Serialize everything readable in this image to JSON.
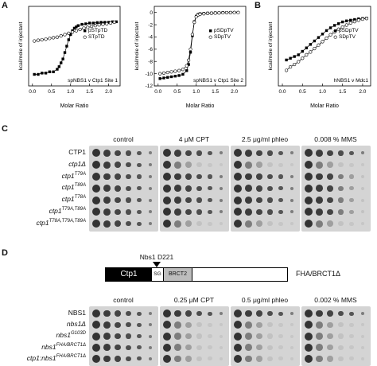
{
  "panel_labels": {
    "a": "A",
    "b": "B",
    "c": "C",
    "d": "D"
  },
  "chart_data": [
    {
      "type": "scatter",
      "panel": "A",
      "ylabel": "kcal/mole of injectant",
      "xlabel": "Molar Ratio",
      "annotation": "spNBS1 v Ctp1 Site 1",
      "xlim": [
        -0.1,
        2.3
      ],
      "ylim": [
        -2.5,
        0.6
      ],
      "xticks": [
        "0.0",
        "0.5",
        "1.0",
        "1.5",
        "2.0"
      ],
      "yticks": [],
      "legend_position": "center-right",
      "series": [
        {
          "name": "pSTpTD",
          "marker": "filled-square",
          "x": [
            0.05,
            0.15,
            0.25,
            0.35,
            0.45,
            0.55,
            0.65,
            0.7,
            0.75,
            0.8,
            0.85,
            0.9,
            0.95,
            1.0,
            1.05,
            1.1,
            1.15,
            1.2,
            1.3,
            1.4,
            1.5,
            1.6,
            1.7,
            1.8,
            1.9,
            2.0,
            2.1,
            2.2
          ],
          "y": [
            -2.05,
            -2.05,
            -2.0,
            -2.0,
            -1.95,
            -1.95,
            -1.85,
            -1.75,
            -1.6,
            -1.45,
            -1.2,
            -0.95,
            -0.7,
            -0.5,
            -0.35,
            -0.25,
            -0.2,
            -0.15,
            -0.1,
            -0.08,
            -0.05,
            -0.05,
            -0.03,
            -0.02,
            -0.02,
            -0.02,
            0.0,
            0.0
          ]
        },
        {
          "name": "STpTD",
          "marker": "open-circle",
          "x": [
            0.05,
            0.15,
            0.25,
            0.35,
            0.45,
            0.55,
            0.65,
            0.75,
            0.85,
            0.95,
            1.05,
            1.15,
            1.25,
            1.35,
            1.45,
            1.55,
            1.65,
            1.75,
            1.85,
            1.95,
            2.05,
            2.15
          ],
          "y": [
            -0.75,
            -0.72,
            -0.7,
            -0.68,
            -0.65,
            -0.62,
            -0.6,
            -0.55,
            -0.5,
            -0.45,
            -0.4,
            -0.35,
            -0.3,
            -0.25,
            -0.22,
            -0.18,
            -0.15,
            -0.12,
            -0.1,
            -0.08,
            -0.05,
            -0.02
          ]
        }
      ]
    },
    {
      "type": "scatter",
      "panel": "A",
      "ylabel": "kcal/mole of injectant",
      "xlabel": "Molar Ratio",
      "annotation": "spNBS1 v Ctp1 Site 2",
      "xlim": [
        -0.1,
        2.3
      ],
      "ylim": [
        -12,
        1
      ],
      "xticks": [
        "0.0",
        "0.5",
        "1.0",
        "1.5",
        "2.0"
      ],
      "yticks": [
        "0",
        "-2",
        "-4",
        "-6",
        "-8",
        "-10",
        "-12"
      ],
      "legend_position": "center-right",
      "series": [
        {
          "name": "pSDpTV",
          "marker": "filled-square",
          "x": [
            0.05,
            0.15,
            0.25,
            0.35,
            0.45,
            0.55,
            0.65,
            0.75,
            0.8,
            0.85,
            0.9,
            0.95,
            1.0,
            1.05,
            1.1,
            1.2,
            1.3,
            1.4,
            1.5,
            1.6,
            1.7,
            1.8,
            1.9,
            2.0,
            2.1
          ],
          "y": [
            -10.8,
            -10.7,
            -10.6,
            -10.5,
            -10.4,
            -10.3,
            -10.1,
            -9.5,
            -8.5,
            -6.5,
            -3.8,
            -1.5,
            -0.6,
            -0.3,
            -0.2,
            -0.15,
            -0.1,
            -0.1,
            -0.05,
            -0.05,
            0.0,
            0.0,
            0.0,
            0.0,
            0.0
          ]
        },
        {
          "name": "SDpTV",
          "marker": "open-circle",
          "x": [
            0.05,
            0.15,
            0.25,
            0.35,
            0.45,
            0.55,
            0.65,
            0.75,
            0.8,
            0.85,
            0.9,
            0.95,
            1.0,
            1.05,
            1.1,
            1.2,
            1.3,
            1.4,
            1.5,
            1.6,
            1.7,
            1.8,
            1.9,
            2.0,
            2.1
          ],
          "y": [
            -10.0,
            -9.9,
            -9.8,
            -9.7,
            -9.6,
            -9.5,
            -9.3,
            -8.7,
            -7.8,
            -6.0,
            -3.6,
            -1.6,
            -0.7,
            -0.4,
            -0.3,
            -0.2,
            -0.15,
            -0.12,
            -0.1,
            -0.08,
            -0.05,
            -0.03,
            -0.02,
            0.0,
            0.0
          ]
        }
      ]
    },
    {
      "type": "scatter",
      "panel": "B",
      "ylabel": "kcal/mole of injectant",
      "xlabel": "Molar Ratio",
      "annotation": "hNBS1 v Mdc1",
      "xlim": [
        -0.1,
        2.2
      ],
      "ylim": [
        -2.0,
        0.3
      ],
      "xticks": [
        "0.0",
        "0.5",
        "1.0",
        "1.5",
        "2.0"
      ],
      "yticks": [],
      "legend_position": "center-right",
      "series": [
        {
          "name": "pSDpTV",
          "marker": "filled-square",
          "x": [
            0.1,
            0.2,
            0.3,
            0.4,
            0.5,
            0.6,
            0.7,
            0.8,
            0.9,
            1.0,
            1.1,
            1.2,
            1.3,
            1.4,
            1.5,
            1.6,
            1.7,
            1.8,
            1.9,
            2.0,
            2.1
          ],
          "y": [
            -1.25,
            -1.2,
            -1.15,
            -1.1,
            -1.0,
            -0.9,
            -0.8,
            -0.7,
            -0.6,
            -0.5,
            -0.4,
            -0.32,
            -0.25,
            -0.2,
            -0.15,
            -0.12,
            -0.1,
            -0.08,
            -0.06,
            -0.05,
            -0.04
          ]
        },
        {
          "name": "SDpTV",
          "marker": "open-circle",
          "x": [
            0.1,
            0.2,
            0.3,
            0.4,
            0.5,
            0.6,
            0.7,
            0.8,
            0.9,
            1.0,
            1.1,
            1.2,
            1.3,
            1.4,
            1.5,
            1.6,
            1.7,
            1.8,
            1.9,
            2.0,
            2.1
          ],
          "y": [
            -1.55,
            -1.45,
            -1.38,
            -1.3,
            -1.2,
            -1.1,
            -1.02,
            -0.92,
            -0.82,
            -0.72,
            -0.62,
            -0.52,
            -0.44,
            -0.36,
            -0.3,
            -0.24,
            -0.18,
            -0.14,
            -0.1,
            -0.07,
            -0.05
          ]
        }
      ]
    }
  ],
  "panel_c": {
    "conditions": [
      "control",
      "4 μM CPT",
      "2.5 μg/ml phleo",
      "0.008 % MMS"
    ],
    "strains": [
      {
        "name": "CTP1",
        "italic": false
      },
      {
        "name": "ctp1Δ",
        "italic": true
      },
      {
        "name": "ctp1",
        "sup": "T79A",
        "italic": true
      },
      {
        "name": "ctp1",
        "sup": "T89A",
        "italic": true
      },
      {
        "name": "ctp1",
        "sup": "T78A",
        "italic": true
      },
      {
        "name": "ctp1",
        "sup": "T79A,T89A",
        "italic": true
      },
      {
        "name": "ctp1",
        "sup": "T78A,T79A,T89A",
        "italic": true
      }
    ]
  },
  "panel_d": {
    "domain_label": "Nbs1 D221",
    "ctp1_label": "Ctp1",
    "sg_label": "SG",
    "brct2_label": "BRCT2",
    "construct_label": "FHA/BRCT1Δ",
    "conditions": [
      "control",
      "0.25 μM CPT",
      "0.5 μg/ml phleo",
      "0.002 % MMS"
    ],
    "strains": [
      {
        "name": "NBS1",
        "italic": false
      },
      {
        "name": "nbs1Δ",
        "italic": true
      },
      {
        "name": "nbs1",
        "sup": "G103D",
        "italic": true
      },
      {
        "name": "nbs1",
        "sup": "FHA/BRCT1Δ",
        "italic": true
      },
      {
        "name": "ctp1:nbs1",
        "sup": "FHA/BRCT1Δ",
        "italic": true
      }
    ]
  }
}
